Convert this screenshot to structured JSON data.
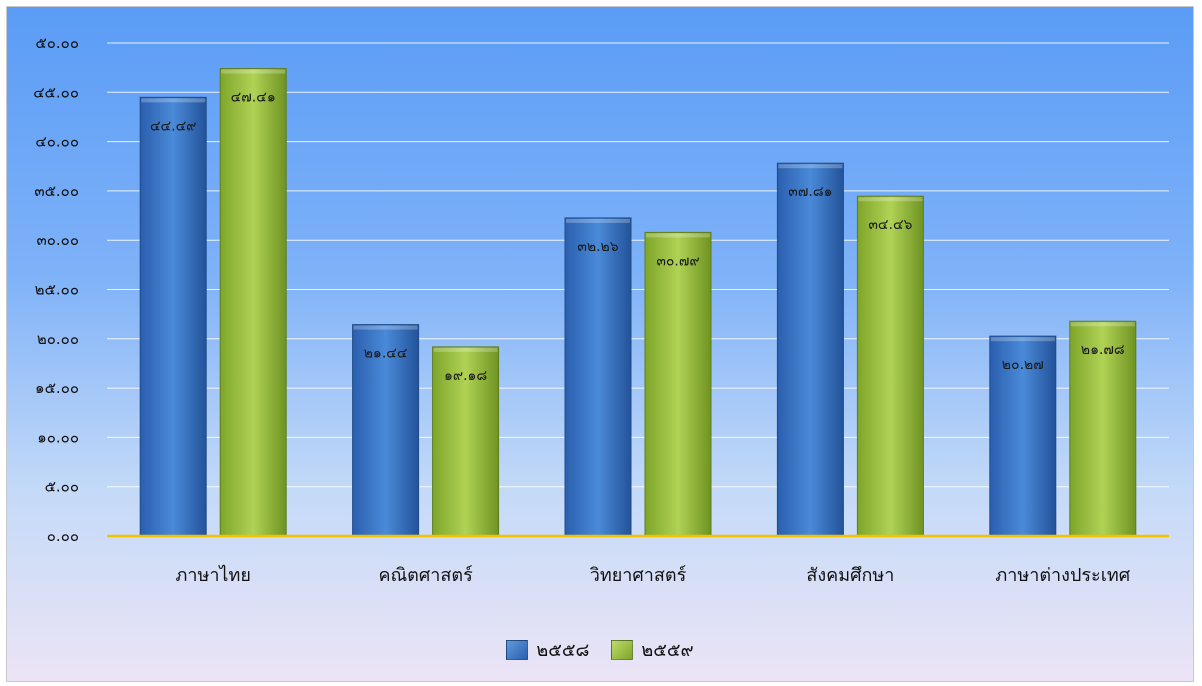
{
  "chart_data": {
    "type": "bar",
    "categories": [
      "ภาษาไทย",
      "คณิตศาสตร์",
      "วิทยาศาสตร์",
      "สังคมศึกษา",
      "ภาษาต่างประเทศ"
    ],
    "series": [
      {
        "name": "๒๕๕๘",
        "values": [
          44.49,
          21.44,
          32.26,
          37.81,
          20.27
        ],
        "labels": [
          "๔๔.๔๙",
          "๒๑.๔๔",
          "๓๒.๒๖",
          "๓๗.๘๑",
          "๒๐.๒๗"
        ],
        "color": "#3d78c8"
      },
      {
        "name": "๒๕๕๙",
        "values": [
          47.41,
          19.18,
          30.79,
          34.46,
          21.78
        ],
        "labels": [
          "๔๗.๔๑",
          "๑๙.๑๘",
          "๓๐.๗๙",
          "๓๔.๔๖",
          "๒๑.๗๘"
        ],
        "color": "#9cc23e"
      }
    ],
    "y_ticks": [
      0,
      5,
      10,
      15,
      20,
      25,
      30,
      35,
      40,
      45,
      50
    ],
    "y_tick_labels": [
      "๐.๐๐",
      "๕.๐๐",
      "๑๐.๐๐",
      "๑๕.๐๐",
      "๒๐.๐๐",
      "๒๕.๐๐",
      "๓๐.๐๐",
      "๓๕.๐๐",
      "๔๐.๐๐",
      "๔๕.๐๐",
      "๕๐.๐๐"
    ],
    "ylim": [
      0,
      50
    ],
    "grid": true,
    "legend_position": "bottom",
    "baseline_color": "#f2c200"
  }
}
